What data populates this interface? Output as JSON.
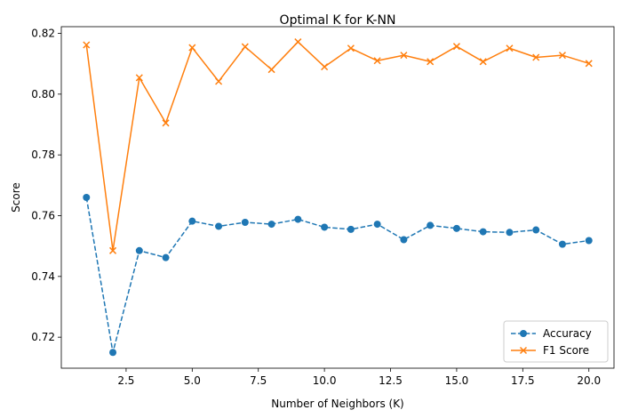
{
  "chart_data": {
    "type": "line",
    "title": "Optimal K for K-NN",
    "xlabel": "Number of Neighbors (K)",
    "ylabel": "Score",
    "xlim": [
      0.05,
      20.95
    ],
    "ylim": [
      0.7098,
      0.8222
    ],
    "xticks": [
      2.5,
      5.0,
      7.5,
      10.0,
      12.5,
      15.0,
      17.5,
      20.0
    ],
    "xtick_labels": [
      "2.5",
      "5.0",
      "7.5",
      "10.0",
      "12.5",
      "15.0",
      "17.5",
      "20.0"
    ],
    "yticks": [
      0.72,
      0.74,
      0.76,
      0.78,
      0.8,
      0.82
    ],
    "ytick_labels": [
      "0.72",
      "0.74",
      "0.76",
      "0.78",
      "0.80",
      "0.82"
    ],
    "grid": false,
    "legend_position": "lower-right",
    "x": [
      1,
      2,
      3,
      4,
      5,
      6,
      7,
      8,
      9,
      10,
      11,
      12,
      13,
      14,
      15,
      16,
      17,
      18,
      19,
      20
    ],
    "series": [
      {
        "name": "Accuracy",
        "color": "#1f77b4",
        "linestyle": "dashed",
        "marker": "circle",
        "values": [
          0.766,
          0.715,
          0.7485,
          0.7462,
          0.7582,
          0.7565,
          0.7578,
          0.7572,
          0.7588,
          0.7562,
          0.7555,
          0.7572,
          0.7521,
          0.7568,
          0.7558,
          0.7547,
          0.7545,
          0.7553,
          0.7506,
          0.7518
        ]
      },
      {
        "name": "F1 Score",
        "color": "#ff7f0e",
        "linestyle": "solid",
        "marker": "x",
        "values": [
          0.8162,
          0.7485,
          0.8054,
          0.7905,
          0.8153,
          0.8042,
          0.8156,
          0.8081,
          0.8172,
          0.809,
          0.8151,
          0.811,
          0.8128,
          0.8107,
          0.8157,
          0.8107,
          0.8151,
          0.8121,
          0.8128,
          0.8101
        ]
      }
    ]
  }
}
